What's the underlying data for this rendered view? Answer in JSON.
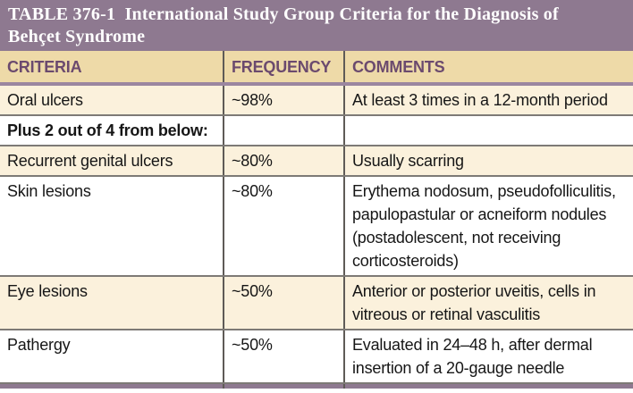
{
  "table_header": {
    "heading": "TABLE 376-1  International Study Group Criteria for the Diagnosis of\nBehçet Syndrome",
    "label": "TABLE 376-1",
    "title": "International Study Group Criteria for the Diagnosis of Behçet Syndrome"
  },
  "columns": {
    "criteria": "CRITERIA",
    "frequency": "FREQUENCY",
    "comments": "COMMENTS"
  },
  "rows": [
    {
      "criteria": "Oral ulcers",
      "frequency": "~98%",
      "comments": "At least 3 times in a 12-month period",
      "shade": "cream",
      "bold": false
    },
    {
      "criteria": "Plus 2 out of 4 from below:",
      "frequency": "",
      "comments": "",
      "shade": "white",
      "bold": true
    },
    {
      "criteria": "Recurrent genital ulcers",
      "frequency": "~80%",
      "comments": "Usually scarring",
      "shade": "cream",
      "bold": false
    },
    {
      "criteria": "Skin lesions",
      "frequency": "~80%",
      "comments": "Erythema nodosum, pseudofolliculitis,\npapulopastular or acneiform nodules\n(postadolescent, not receiving\ncorticosteroids)",
      "shade": "white",
      "bold": false
    },
    {
      "criteria": "Eye lesions",
      "frequency": "~50%",
      "comments": "Anterior or posterior uveitis, cells in\nvitreous or retinal vasculitis",
      "shade": "cream",
      "bold": false
    },
    {
      "criteria": "Pathergy",
      "frequency": "~50%",
      "comments": "Evaluated in 24–48 h, after dermal\ninsertion of a 20-gauge needle",
      "shade": "white",
      "bold": false
    }
  ],
  "colors": {
    "title_bar": "#8e7990",
    "header_row_bg": "#eedaa8",
    "header_text": "#6b4a6e",
    "cream_row_bg": "#fbf1dc",
    "white_row_bg": "#ffffff",
    "body_text": "#161616",
    "rule_gray": "#7d7a76",
    "bottom_bar": "#8e7990"
  }
}
